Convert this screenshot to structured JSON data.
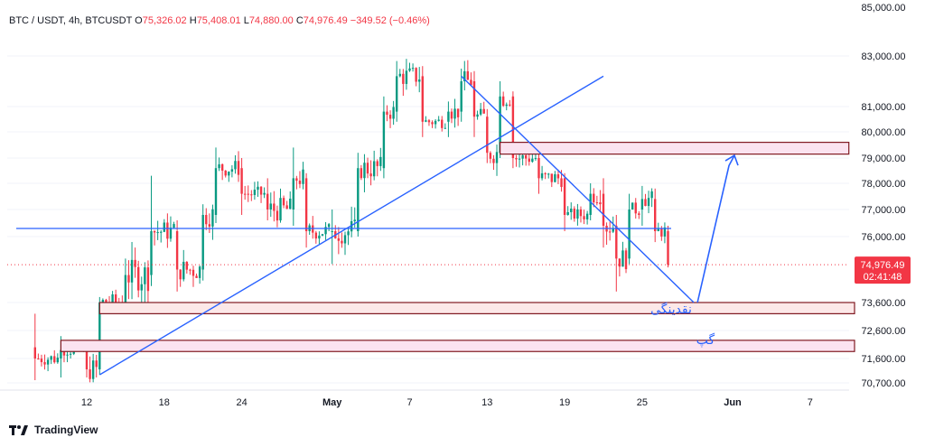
{
  "legend": {
    "symbol": "BTC / USDT, 4h, BTCUSDT",
    "open_label": "O",
    "open": "75,326.02",
    "high_label": "H",
    "high": "75,408.01",
    "low_label": "L",
    "low": "74,880.00",
    "close_label": "C",
    "close": "74,976.49",
    "change": "−349.52 (−0.46%)"
  },
  "price_tag": {
    "price": "74,976.49",
    "countdown": "02:41:48",
    "value": 74976.49,
    "color": "#f23645"
  },
  "branding": {
    "name": "TradingView"
  },
  "annotations": {
    "liquidity": "نقدینگی",
    "gap": "گپ"
  },
  "colors": {
    "up": "#089981",
    "down": "#f23645",
    "drawing": "#2962ff",
    "zone_border": "#801922",
    "zone_fill_1": "#fce8e8",
    "zone_fill_2": "#fbe3f0"
  },
  "chart_data": {
    "type": "candlestick",
    "timeframe": "4h",
    "y_axis": {
      "ticks": [
        83000,
        81000,
        80000,
        79000,
        78000,
        77000,
        76000,
        73600,
        72600,
        71600,
        70700
      ],
      "tick_labels": [
        "83,000.00",
        "81,000.00",
        "80,000.00",
        "79,000.00",
        "78,000.00",
        "77,000.00",
        "76,000.00",
        "73,600.00",
        "72,600.00",
        "71,600.00",
        "70,700.00"
      ],
      "top_partial_label": "85,000.00"
    },
    "x_axis": {
      "ticks": [
        "12",
        "18",
        "24",
        "May",
        "7",
        "13",
        "19",
        "25",
        "Jun",
        "7"
      ]
    },
    "ohlc_trend": [
      {
        "date": "Apr 8",
        "open": 72000,
        "high": 73200,
        "low": 70800,
        "close": 71600
      },
      {
        "date": "Apr 10",
        "open": 71600,
        "high": 72400,
        "low": 70900,
        "close": 71900
      },
      {
        "date": "Apr 12",
        "open": 71900,
        "high": 72000,
        "low": 70900,
        "close": 71200
      },
      {
        "date": "Apr 13",
        "open": 71200,
        "high": 73800,
        "low": 71000,
        "close": 73600
      },
      {
        "date": "Apr 15",
        "open": 73600,
        "high": 75200,
        "low": 73200,
        "close": 74600
      },
      {
        "date": "Apr 17",
        "open": 74600,
        "high": 78300,
        "low": 74200,
        "close": 76200
      },
      {
        "date": "Apr 19",
        "open": 76200,
        "high": 76600,
        "low": 74000,
        "close": 74800
      },
      {
        "date": "Apr 21",
        "open": 74800,
        "high": 77200,
        "low": 74400,
        "close": 76800
      },
      {
        "date": "Apr 22",
        "open": 76800,
        "high": 79400,
        "low": 76500,
        "close": 78600
      },
      {
        "date": "Apr 24",
        "open": 78600,
        "high": 79000,
        "low": 76800,
        "close": 77600
      },
      {
        "date": "Apr 26",
        "open": 77600,
        "high": 78200,
        "low": 76600,
        "close": 77000
      },
      {
        "date": "Apr 28",
        "open": 77000,
        "high": 79400,
        "low": 76400,
        "close": 78200
      },
      {
        "date": "Apr 29",
        "open": 78200,
        "high": 78400,
        "low": 75600,
        "close": 76200
      },
      {
        "date": "May 1",
        "open": 76200,
        "high": 77000,
        "low": 75000,
        "close": 76200
      },
      {
        "date": "May 3",
        "open": 76200,
        "high": 79200,
        "low": 76000,
        "close": 78600
      },
      {
        "date": "May 5",
        "open": 78600,
        "high": 81400,
        "low": 78200,
        "close": 80800
      },
      {
        "date": "May 6",
        "open": 80800,
        "high": 82800,
        "low": 80400,
        "close": 82200
      },
      {
        "date": "May 8",
        "open": 82200,
        "high": 82600,
        "low": 79800,
        "close": 80400
      },
      {
        "date": "May 10",
        "open": 80400,
        "high": 81200,
        "low": 79800,
        "close": 80800
      },
      {
        "date": "May 11",
        "open": 80800,
        "high": 82500,
        "low": 80400,
        "close": 82000
      },
      {
        "date": "May 12",
        "open": 82000,
        "high": 82400,
        "low": 79800,
        "close": 80600
      },
      {
        "date": "May 13",
        "open": 80600,
        "high": 80900,
        "low": 78800,
        "close": 79200
      },
      {
        "date": "May 14",
        "open": 79200,
        "high": 82000,
        "low": 79000,
        "close": 81400
      },
      {
        "date": "May 15",
        "open": 81400,
        "high": 81600,
        "low": 78600,
        "close": 79000
      },
      {
        "date": "May 17",
        "open": 79000,
        "high": 79400,
        "low": 77600,
        "close": 78200
      },
      {
        "date": "May 19",
        "open": 78200,
        "high": 78400,
        "low": 76200,
        "close": 76800
      },
      {
        "date": "May 21",
        "open": 76800,
        "high": 78000,
        "low": 76600,
        "close": 77600
      },
      {
        "date": "May 22",
        "open": 77600,
        "high": 78200,
        "low": 75600,
        "close": 76400
      },
      {
        "date": "May 23",
        "open": 76400,
        "high": 76800,
        "low": 74000,
        "close": 75200
      },
      {
        "date": "May 24",
        "open": 75200,
        "high": 77600,
        "low": 75000,
        "close": 77000
      },
      {
        "date": "May 25",
        "open": 77000,
        "high": 77900,
        "low": 76400,
        "close": 77400
      },
      {
        "date": "May 26",
        "open": 77400,
        "high": 77800,
        "low": 75800,
        "close": 76200
      },
      {
        "date": "May 27",
        "open": 76200,
        "high": 76400,
        "low": 74880,
        "close": 74976.49
      }
    ],
    "horizontal_line": 76300,
    "zones": [
      {
        "name": "upper-supply-zone",
        "from": "May 14",
        "to": "Jun 10",
        "low": 79150,
        "high": 79600
      },
      {
        "name": "liquidity-zone",
        "from": "Apr 13",
        "to": "Jun 12",
        "low": 73200,
        "high": 73600
      },
      {
        "name": "gap-zone",
        "from": "Apr 10",
        "to": "Jun 12",
        "low": 71850,
        "high": 72250
      }
    ],
    "trendlines": [
      {
        "name": "ascending-trendline",
        "from": {
          "date": "Apr 13",
          "price": 71000
        },
        "to": {
          "date": "May 22",
          "price": 82200
        }
      },
      {
        "name": "descending-trendline",
        "from": {
          "date": "May 11",
          "price": 82200
        },
        "to": {
          "date": "May 29",
          "price": 73600
        }
      }
    ],
    "projection_path": [
      {
        "date": "May 29",
        "price": 73600
      },
      {
        "date": "Jun 1",
        "price": 78700
      },
      {
        "date": "Jun 1",
        "price": 79100
      }
    ]
  }
}
